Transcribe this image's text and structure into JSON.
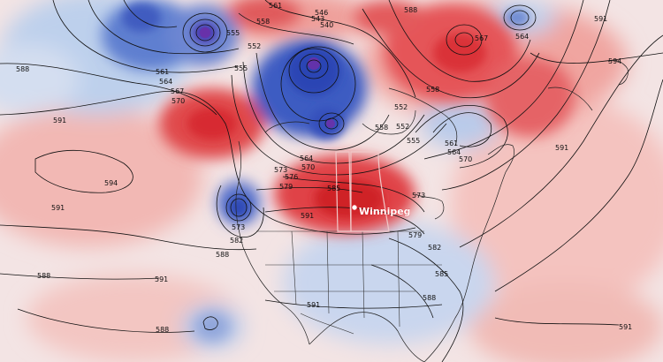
{
  "map": {
    "city": {
      "name": "Winnipeg",
      "label": "Winnipeg"
    },
    "contour_labels": [
      "588",
      "591",
      "594",
      "558",
      "561",
      "546",
      "543",
      "540",
      "555",
      "552",
      "564",
      "567",
      "570",
      "573",
      "576",
      "579",
      "582",
      "585"
    ],
    "colors": {
      "ridge_strong": "#d8262e",
      "ridge_mid": "#ea7a78",
      "ridge_light": "#f6c9c5",
      "neutral": "#f7f4f4",
      "trough_light": "#c9d6ee",
      "trough_mid": "#7f99d6",
      "trough_strong": "#2440b0",
      "trough_core": "#5a26a8",
      "contour_line": "#111111",
      "coastline": "#222222",
      "border": "#333333",
      "province_outline": "#f0c8c8",
      "city_marker": "#ffffff"
    }
  }
}
